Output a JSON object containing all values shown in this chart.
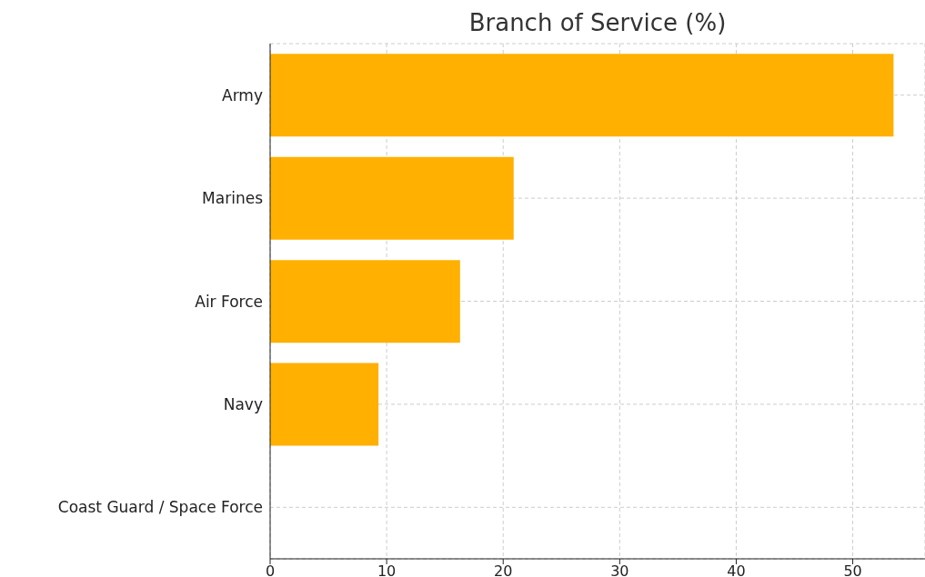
{
  "chart_data": {
    "type": "bar",
    "orientation": "horizontal",
    "title": "Branch of Service (%)",
    "categories": [
      "Army",
      "Marines",
      "Air Force",
      "Navy",
      "Coast Guard / Space Force"
    ],
    "values": [
      53.5,
      20.9,
      16.3,
      9.3,
      0
    ],
    "color": "#ffb000",
    "xlim": [
      0,
      56.2
    ],
    "xticks": [
      0,
      10,
      20,
      30,
      40,
      50
    ],
    "grid": true
  }
}
